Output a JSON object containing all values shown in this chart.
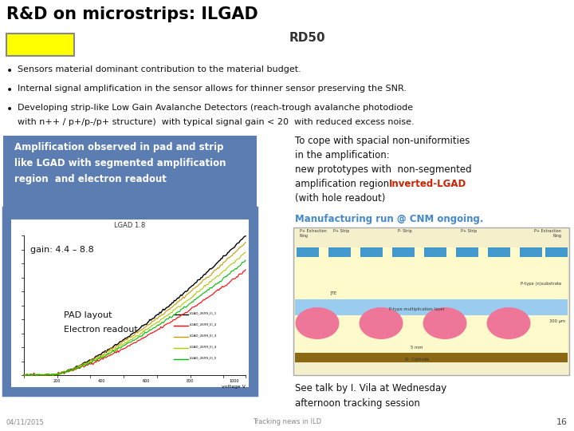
{
  "title": "R&D on microstrips: ILGAD",
  "subtitle": "RD50",
  "bullet1": "Sensors material dominant contribution to the material budget.",
  "bullet2": "Internal signal amplification in the sensor allows for thinner sensor preserving the SNR.",
  "bullet3a": "Developing strip-like Low Gain Avalanche Detectors (reach-trough avalanche photodiode",
  "bullet3b": "with n++ / p+/p-/p+ structure)  with typical signal gain < 20  with reduced excess noise.",
  "box_color": "#5b7db1",
  "box_text_line1": "Amplification observed in pad and strip",
  "box_text_line2": "like LGAD with segmented amplification",
  "box_text_line3": "region  and electron readout",
  "gain_text": "gain: 4.4 – 8.8",
  "pad_layout_text1": "PAD layout",
  "pad_layout_text2": "Electron readout",
  "right_text1": "To cope with spacial non-uniformities",
  "right_text2": "in the amplification:",
  "right_text3": "new prototypes with  non-segmented",
  "right_text4": "amplification region ",
  "right_text4b": "Inverted-LGAD",
  "right_text5": "(with hole readout)",
  "manufacturing_text": "Manufacturing run @ CNM ongoing.",
  "see_talk_text1": "See talk by I. Vila at Wednesday",
  "see_talk_text2": "afternoon tracking session",
  "date_text": "04/11/2015",
  "footer_text": "Tracking news in ILD",
  "page_number": "16",
  "bg_color": "#ffffff",
  "title_color": "#000000",
  "yellow_color": "#ffff00",
  "yellow_border": "#888888"
}
